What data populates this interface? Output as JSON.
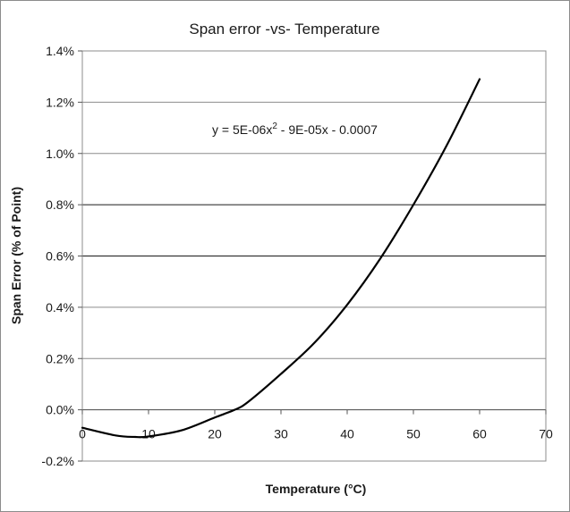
{
  "chart_data": {
    "type": "line",
    "title": "Span error -vs- Temperature",
    "xlabel": "Temperature (°C)",
    "ylabel": "Span Error (% of Point)",
    "xlim": [
      0,
      70
    ],
    "ylim": [
      -0.2,
      1.4
    ],
    "x_ticks": [
      0,
      10,
      20,
      30,
      40,
      50,
      60,
      70
    ],
    "x_tick_labels": [
      "0",
      "10",
      "20",
      "30",
      "40",
      "50",
      "60",
      "70"
    ],
    "y_ticks": [
      -0.2,
      0.0,
      0.2,
      0.4,
      0.6,
      0.8,
      1.0,
      1.2,
      1.4
    ],
    "y_tick_labels": [
      "-0.2%",
      "0.0%",
      "0.2%",
      "0.4%",
      "0.6%",
      "0.8%",
      "1.0%",
      "1.2%",
      "1.4%"
    ],
    "grid": "horizontal",
    "annotation": {
      "prefix": "y = 5E-06x",
      "superscript": "2",
      "suffix": " - 9E-05x - 0.0007"
    },
    "series": [
      {
        "name": "Span error",
        "color": "#000000",
        "x": [
          0,
          5,
          8,
          10,
          15,
          20,
          23,
          25,
          30,
          35,
          40,
          45,
          50,
          55,
          60
        ],
        "y": [
          -0.07,
          -0.1,
          -0.106,
          -0.104,
          -0.08,
          -0.03,
          0.0,
          0.03,
          0.14,
          0.26,
          0.41,
          0.59,
          0.8,
          1.03,
          1.29
        ]
      }
    ]
  }
}
